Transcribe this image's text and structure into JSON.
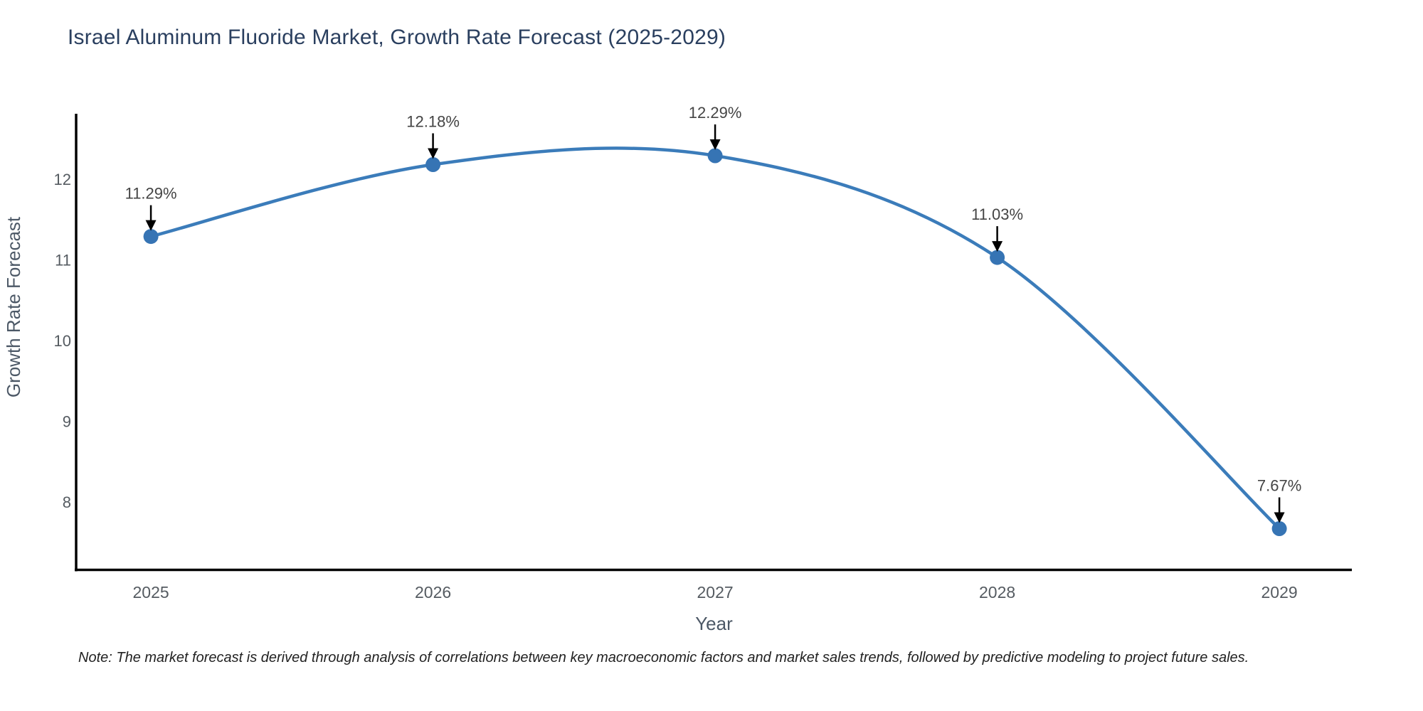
{
  "title": "Israel Aluminum Fluoride Market, Growth Rate Forecast (2025-2029)",
  "note": "Note: The market forecast is derived through analysis of correlations between key macroeconomic factors and market sales trends, followed by predictive modeling to project future sales.",
  "chart_data": {
    "type": "line",
    "line_shape": "spline",
    "title": "Israel Aluminum Fluoride Market, Growth Rate Forecast (2025-2029)",
    "xlabel": "Year",
    "ylabel": "Growth Rate Forecast",
    "x": [
      2025,
      2026,
      2027,
      2028,
      2029
    ],
    "y": [
      11.29,
      12.18,
      12.29,
      11.03,
      7.67
    ],
    "point_labels": [
      "11.29%",
      "12.18%",
      "12.29%",
      "11.03%",
      "7.67%"
    ],
    "x_tick_labels": [
      "2025",
      "2026",
      "2027",
      "2028",
      "2029"
    ],
    "y_ticks": [
      8,
      9,
      10,
      11,
      12
    ],
    "xlim": [
      2024.735,
      2029.257
    ],
    "ylim": [
      7.155,
      12.81
    ],
    "grid": false,
    "legend": "none",
    "annotation_arrows": true,
    "colors": {
      "line": "#3b7cba",
      "marker": "#3674b4",
      "axis_line": "#000000",
      "tick_label": "#555b61",
      "axis_title": "#4c5866",
      "annotation_text": "#444444",
      "arrow": "#000000",
      "title": "#2a3f5f",
      "background": "#ffffff"
    }
  }
}
